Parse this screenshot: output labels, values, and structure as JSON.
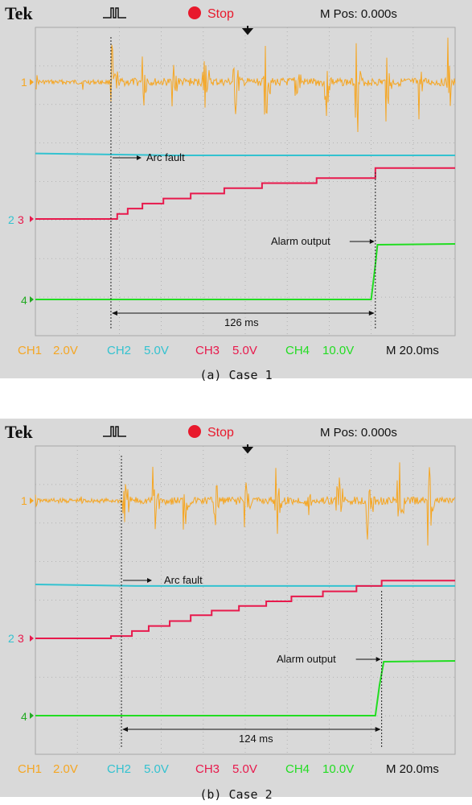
{
  "colors": {
    "ch1": "#f5a623",
    "ch2": "#33c2d0",
    "ch3": "#e8194c",
    "ch4": "#22dd22",
    "stop": "#e8192c",
    "background": "#d9d9d9",
    "grid": "#a8a8a8"
  },
  "panels": [
    {
      "header": {
        "brand": "Tek",
        "status": "Stop",
        "mpos": "M Pos: 0.000s"
      },
      "channel_markers": {
        "ch1": "1",
        "ch2": "2",
        "ch3": "3",
        "ch4": "4"
      },
      "annotations": {
        "arc_fault": "Arc fault",
        "alarm_output": "Alarm output",
        "delay": "126 ms"
      },
      "footer": {
        "ch1": "CH1",
        "ch1_scale": "2.0V",
        "ch2": "CH2",
        "ch2_scale": "5.0V",
        "ch3": "CH3",
        "ch3_scale": "5.0V",
        "ch4": "CH4",
        "ch4_scale": "10.0V",
        "timebase": "M 20.0ms"
      },
      "caption": "(a) Case 1"
    },
    {
      "header": {
        "brand": "Tek",
        "status": "Stop",
        "mpos": "M Pos: 0.000s"
      },
      "channel_markers": {
        "ch1": "1",
        "ch2": "2",
        "ch3": "3",
        "ch4": "4"
      },
      "annotations": {
        "arc_fault": "Arc fault",
        "alarm_output": "Alarm output",
        "delay": "124 ms"
      },
      "footer": {
        "ch1": "CH1",
        "ch1_scale": "2.0V",
        "ch2": "CH2",
        "ch2_scale": "5.0V",
        "ch3": "CH3",
        "ch3_scale": "5.0V",
        "ch4": "CH4",
        "ch4_scale": "10.0V",
        "timebase": "M 20.0ms"
      },
      "caption": "(b) Case 2"
    }
  ],
  "chart_data": [
    {
      "type": "line",
      "title": "",
      "xlabel": "",
      "ylabel": "",
      "x_unit": "ms",
      "x_range_ms": [
        -100,
        100
      ],
      "grid": true,
      "arc_fault_time_ms": -64,
      "alarm_time_ms": 62,
      "delay_ms": 126,
      "series": [
        {
          "name": "CH1",
          "scale": "2.0V/div",
          "kind": "arc fault current bursts"
        },
        {
          "name": "CH2",
          "scale": "5.0V/div",
          "x": [
            -100,
            -34,
            100
          ],
          "y_div": [
            1.7,
            1.65,
            1.65
          ]
        },
        {
          "name": "CH3",
          "scale": "5.0V/div",
          "x": [
            -100,
            -64,
            -61,
            -56,
            -49,
            -39,
            -26,
            -10,
            8,
            34,
            62,
            100
          ],
          "y_div": [
            0.0,
            0.0,
            0.13,
            0.27,
            0.4,
            0.53,
            0.66,
            0.8,
            0.93,
            1.06,
            1.32,
            1.32
          ]
        },
        {
          "name": "CH4",
          "scale": "10.0V/div",
          "x": [
            -100,
            60,
            62,
            63,
            100
          ],
          "y_div": [
            0.0,
            0.0,
            0.9,
            1.42,
            1.44
          ]
        }
      ]
    },
    {
      "type": "line",
      "title": "",
      "xlabel": "",
      "ylabel": "",
      "x_unit": "ms",
      "x_range_ms": [
        -100,
        100
      ],
      "grid": true,
      "arc_fault_time_ms": -59,
      "alarm_time_ms": 65,
      "delay_ms": 124,
      "series": [
        {
          "name": "CH1",
          "scale": "2.0V/div",
          "kind": "arc fault current bursts"
        },
        {
          "name": "CH2",
          "scale": "5.0V/div",
          "x": [
            -100,
            -52,
            100
          ],
          "y_div": [
            1.4,
            1.36,
            1.36
          ]
        },
        {
          "name": "CH3",
          "scale": "5.0V/div",
          "x": [
            -100,
            -64,
            -54,
            -46,
            -36,
            -26,
            -16,
            -3,
            10,
            22,
            37,
            53,
            65,
            100
          ],
          "y_div": [
            0.0,
            0.06,
            0.19,
            0.32,
            0.45,
            0.6,
            0.72,
            0.84,
            0.96,
            1.09,
            1.22,
            1.36,
            1.5,
            1.5
          ]
        },
        {
          "name": "CH4",
          "scale": "10.0V/div",
          "x": [
            -100,
            62,
            64,
            66,
            100
          ],
          "y_div": [
            0.0,
            0.0,
            0.8,
            1.4,
            1.42
          ]
        }
      ]
    }
  ]
}
